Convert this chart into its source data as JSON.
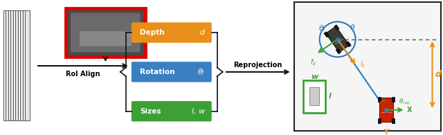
{
  "fig_width": 6.4,
  "fig_height": 1.95,
  "dpi": 100,
  "bg_color": "#ffffff",
  "box_depth_color": "#E8901A",
  "box_rotation_color": "#3A7FC1",
  "box_sizes_color": "#3DA035",
  "box_depth_label": "Depth",
  "box_depth_symbol": "d",
  "box_rotation_label": "Rotation",
  "box_sizes_label": "Sizes",
  "box_sizes_symbol": "l, w",
  "roi_align_label": "RoI Align",
  "reprojection_label": "Reprojection",
  "orange_color": "#E8901A",
  "blue_color": "#2B7BBA",
  "green_color": "#3DA035",
  "red_color": "#CC0000",
  "panel_bg": "#f5f5f5",
  "panel_edge": "#222222",
  "stack_face": "#e8e8e8",
  "stack_edge": "#555555",
  "car_border": "#DD0000",
  "car_bg": "#555555",
  "dashed_color": "#555555",
  "brace_color": "#111111",
  "arrow_color": "#111111"
}
